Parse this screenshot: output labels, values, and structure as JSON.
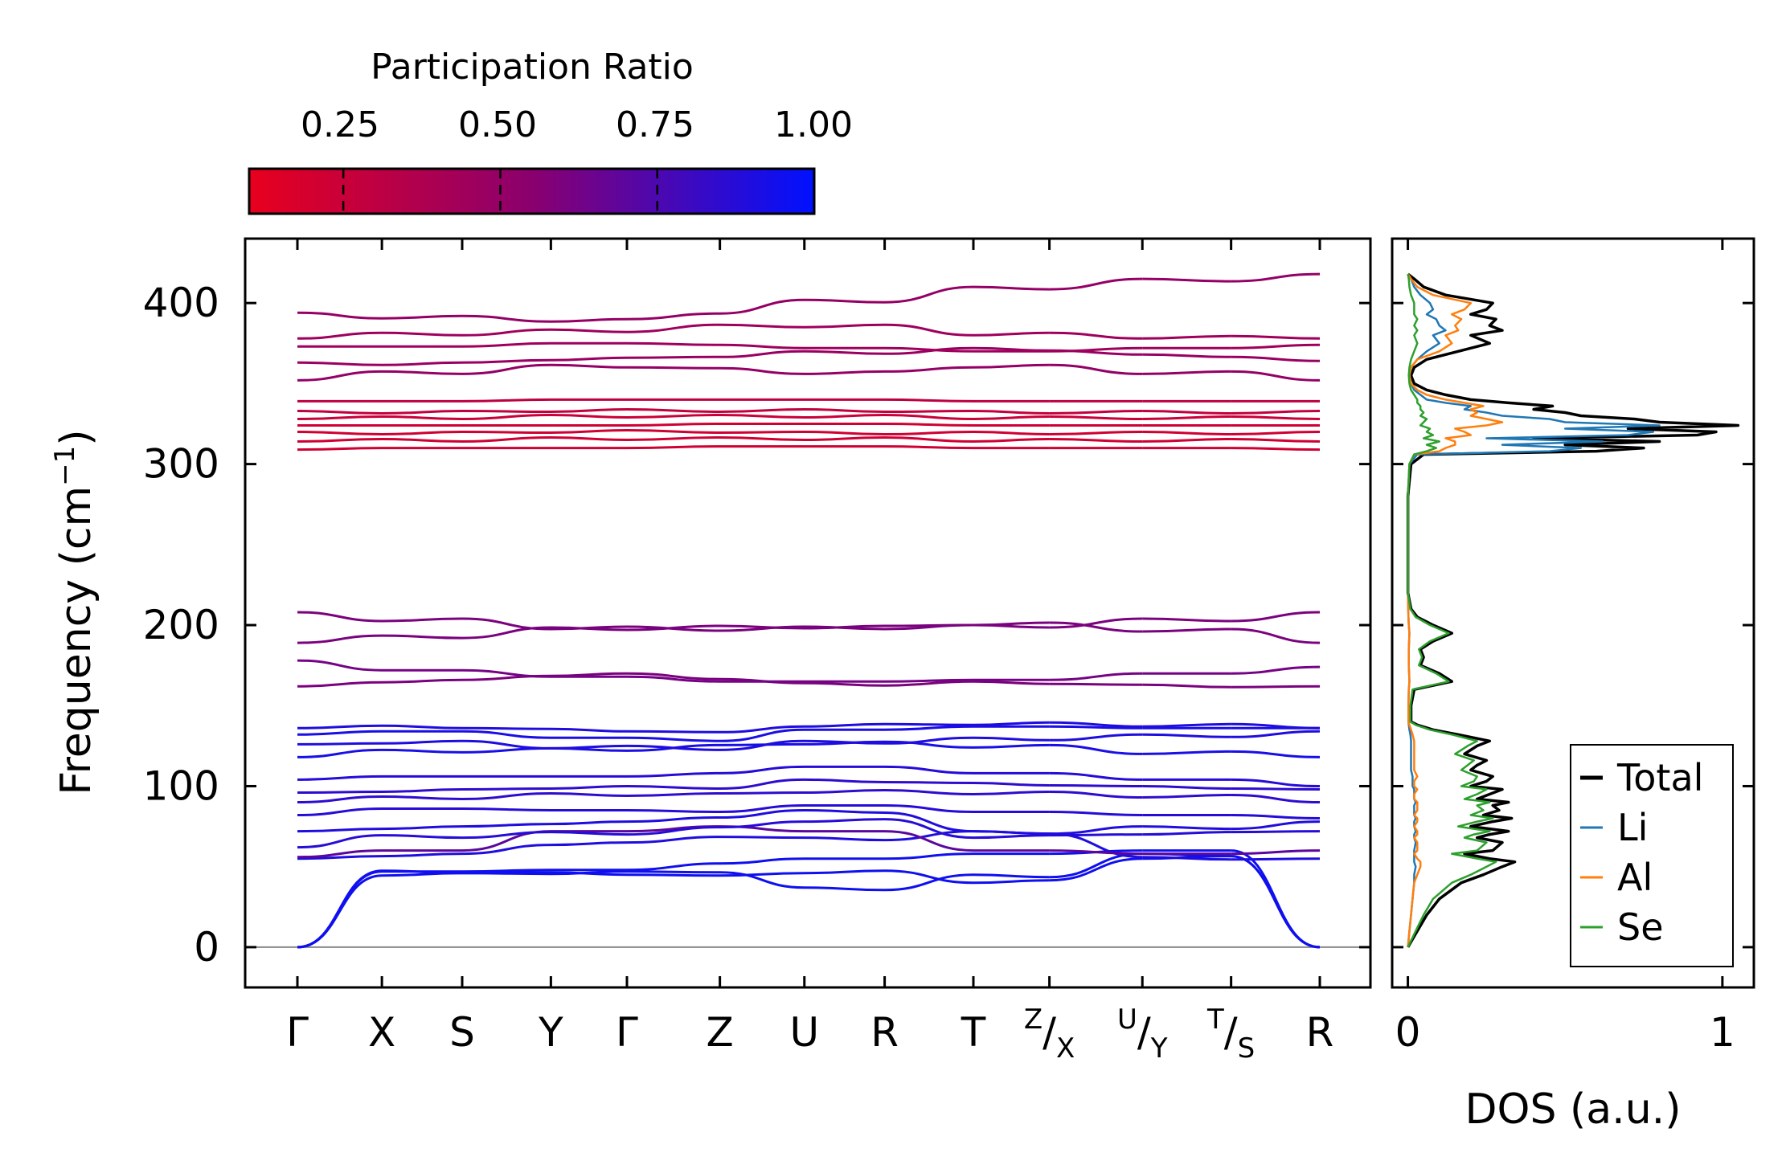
{
  "chart_data": [
    {
      "type": "line",
      "title": "",
      "xlabel": "",
      "ylabel": "Frequency (cm⁻¹)",
      "ylabel_main": "Frequency (cm",
      "ylabel_exp": "−1",
      "ylabel_close": ")",
      "ylim": [
        -25,
        440
      ],
      "yticks": [
        0,
        100,
        200,
        300,
        400
      ],
      "ytick_labels": [
        "0",
        "100",
        "200",
        "300",
        "400"
      ],
      "kpoints": [
        {
          "label": "Γ",
          "main": "Γ",
          "sup": "",
          "sub": ""
        },
        {
          "label": "X",
          "main": "X",
          "sup": "",
          "sub": ""
        },
        {
          "label": "S",
          "main": "S",
          "sup": "",
          "sub": ""
        },
        {
          "label": "Y",
          "main": "Y",
          "sup": "",
          "sub": ""
        },
        {
          "label": "Γ",
          "main": "Γ",
          "sup": "",
          "sub": ""
        },
        {
          "label": "Z",
          "main": "Z",
          "sup": "",
          "sub": ""
        },
        {
          "label": "U",
          "main": "U",
          "sup": "",
          "sub": ""
        },
        {
          "label": "R",
          "main": "R",
          "sup": "",
          "sub": ""
        },
        {
          "label": "T",
          "main": "T",
          "sup": "",
          "sub": ""
        },
        {
          "label": "Z/X",
          "main": "/",
          "sup": "Z",
          "sub": "X"
        },
        {
          "label": "U/Y",
          "main": "/",
          "sup": "U",
          "sub": "Y"
        },
        {
          "label": "T/S",
          "main": "/",
          "sup": "T",
          "sub": "S"
        },
        {
          "label": "R",
          "main": "R",
          "sup": "",
          "sub": ""
        }
      ],
      "kpos": [
        0,
        1.0,
        1.95,
        3.0,
        3.9,
        5.0,
        6.0,
        6.95,
        8.0,
        8.9,
        10.0,
        11.05,
        12.1
      ],
      "segments": [
        [
          0,
          4
        ],
        [
          4,
          9
        ],
        [
          9,
          10
        ],
        [
          10,
          11
        ],
        [
          11,
          12
        ]
      ],
      "series_description": "Phonon band structure colored by participation ratio",
      "bands": [
        {
          "f": [
            0,
            46,
            47,
            48,
            37,
            45,
            58,
            0
          ],
          "pr": 0.95
        },
        {
          "f": [
            0,
            47,
            48,
            52,
            55,
            58,
            60,
            0
          ],
          "pr": 0.95
        },
        {
          "f": [
            0,
            46,
            45,
            43,
            46,
            40,
            55,
            0
          ],
          "pr": 0.95
        },
        {
          "f": [
            55,
            58,
            65,
            70,
            68,
            72,
            56,
            55
          ],
          "pr": 0.9
        },
        {
          "f": [
            56,
            60,
            72,
            75,
            72,
            60,
            58,
            60
          ],
          "pr": 0.7
        },
        {
          "f": [
            62,
            68,
            70,
            73,
            78,
            68,
            70,
            72
          ],
          "pr": 0.88
        },
        {
          "f": [
            72,
            75,
            78,
            82,
            85,
            72,
            75,
            78
          ],
          "pr": 0.9
        },
        {
          "f": [
            82,
            86,
            85,
            84,
            88,
            84,
            82,
            80
          ],
          "pr": 0.88
        },
        {
          "f": [
            90,
            92,
            94,
            94,
            96,
            95,
            93,
            90
          ],
          "pr": 0.85
        },
        {
          "f": [
            96,
            98,
            100,
            100,
            104,
            102,
            100,
            98
          ],
          "pr": 0.85
        },
        {
          "f": [
            104,
            106,
            106,
            108,
            112,
            108,
            104,
            100
          ],
          "pr": 0.88
        },
        {
          "f": [
            118,
            121,
            122,
            124,
            126,
            124,
            120,
            118
          ],
          "pr": 0.92
        },
        {
          "f": [
            126,
            128,
            125,
            124,
            128,
            130,
            132,
            134
          ],
          "pr": 0.9
        },
        {
          "f": [
            132,
            134,
            130,
            128,
            135,
            137,
            136,
            136
          ],
          "pr": 0.92
        },
        {
          "f": [
            136,
            136,
            134,
            132,
            137,
            138,
            137,
            136
          ],
          "pr": 0.9
        },
        {
          "f": [
            162,
            166,
            170,
            168,
            164,
            165,
            163,
            162
          ],
          "pr": 0.6
        },
        {
          "f": [
            178,
            172,
            168,
            165,
            165,
            166,
            170,
            174
          ],
          "pr": 0.62
        },
        {
          "f": [
            189,
            192,
            197,
            198,
            198,
            200,
            196,
            189
          ],
          "pr": 0.6
        },
        {
          "f": [
            208,
            204,
            199,
            198,
            199,
            200,
            204,
            208
          ],
          "pr": 0.6
        },
        {
          "f": [
            309,
            310,
            310,
            311,
            311,
            310,
            310,
            309
          ],
          "pr": 0.22
        },
        {
          "f": [
            314,
            314,
            315,
            315,
            315,
            314,
            314,
            314
          ],
          "pr": 0.22
        },
        {
          "f": [
            320,
            320,
            321,
            321,
            320,
            320,
            320,
            320
          ],
          "pr": 0.22
        },
        {
          "f": [
            324,
            324,
            324,
            325,
            325,
            324,
            324,
            324
          ],
          "pr": 0.22
        },
        {
          "f": [
            328,
            328,
            329,
            329,
            329,
            328,
            328,
            328
          ],
          "pr": 0.25
        },
        {
          "f": [
            333,
            333,
            334,
            334,
            334,
            333,
            333,
            333
          ],
          "pr": 0.28
        },
        {
          "f": [
            339,
            339,
            340,
            340,
            340,
            339,
            339,
            339
          ],
          "pr": 0.3
        },
        {
          "f": [
            352,
            356,
            360,
            358,
            356,
            360,
            356,
            352
          ],
          "pr": 0.5
        },
        {
          "f": [
            363,
            363,
            366,
            368,
            370,
            372,
            368,
            364
          ],
          "pr": 0.48
        },
        {
          "f": [
            373,
            373,
            375,
            374,
            372,
            370,
            372,
            374
          ],
          "pr": 0.45
        },
        {
          "f": [
            378,
            380,
            382,
            385,
            385,
            380,
            378,
            378
          ],
          "pr": 0.45
        },
        {
          "f": [
            394,
            392,
            390,
            395,
            402,
            410,
            415,
            418
          ],
          "pr": 0.5
        }
      ]
    },
    {
      "type": "line",
      "title": "",
      "xlabel": "DOS (a.u.)",
      "ylabel": "",
      "xlim": [
        -0.05,
        1.1
      ],
      "ylim": [
        -25,
        440
      ],
      "xticks": [
        0,
        1
      ],
      "xtick_labels": [
        "0",
        "1"
      ],
      "legend_position": "lower-right",
      "freq": [
        0,
        10,
        20,
        30,
        40,
        45,
        50,
        53,
        55,
        58,
        60,
        65,
        68,
        70,
        72,
        75,
        78,
        80,
        82,
        85,
        88,
        90,
        92,
        95,
        98,
        100,
        103,
        106,
        110,
        113,
        116,
        120,
        125,
        128,
        132,
        135,
        138,
        140,
        150,
        160,
        165,
        170,
        175,
        180,
        185,
        190,
        195,
        200,
        205,
        210,
        220,
        250,
        280,
        300,
        306,
        308,
        310,
        312,
        314,
        316,
        318,
        320,
        322,
        324,
        326,
        328,
        330,
        332,
        334,
        336,
        338,
        340,
        343,
        346,
        350,
        355,
        360,
        365,
        370,
        375,
        380,
        383,
        386,
        390,
        393,
        396,
        400,
        405,
        410,
        415,
        418
      ],
      "series": [
        {
          "name": "Total",
          "color": "#000000",
          "values": [
            0,
            0.03,
            0.06,
            0.1,
            0.17,
            0.24,
            0.3,
            0.34,
            0.26,
            0.18,
            0.27,
            0.3,
            0.22,
            0.26,
            0.32,
            0.2,
            0.27,
            0.33,
            0.24,
            0.29,
            0.27,
            0.32,
            0.22,
            0.26,
            0.3,
            0.2,
            0.25,
            0.27,
            0.2,
            0.22,
            0.25,
            0.18,
            0.22,
            0.26,
            0.16,
            0.08,
            0.03,
            0.01,
            0.01,
            0.02,
            0.14,
            0.1,
            0.04,
            0.05,
            0.04,
            0.08,
            0.14,
            0.08,
            0.03,
            0.01,
            0,
            0,
            0,
            0.01,
            0.05,
            0.6,
            0.75,
            0.5,
            0.8,
            0.4,
            0.92,
            0.98,
            0.7,
            1.05,
            0.8,
            0.72,
            0.55,
            0.5,
            0.4,
            0.46,
            0.32,
            0.2,
            0.12,
            0.06,
            0.02,
            0.01,
            0.02,
            0.06,
            0.16,
            0.26,
            0.2,
            0.3,
            0.26,
            0.28,
            0.2,
            0.25,
            0.27,
            0.12,
            0.05,
            0.02,
            0
          ]
        },
        {
          "name": "Li",
          "color": "#1f77b4",
          "values": [
            0,
            0.005,
            0.01,
            0.015,
            0.02,
            0.02,
            0.025,
            0.02,
            0.02,
            0.02,
            0.02,
            0.025,
            0.02,
            0.02,
            0.025,
            0.02,
            0.02,
            0.025,
            0.02,
            0.02,
            0.02,
            0.025,
            0.02,
            0.02,
            0.02,
            0.015,
            0.015,
            0.015,
            0.01,
            0.01,
            0.01,
            0.01,
            0.01,
            0.01,
            0.008,
            0.005,
            0.003,
            0.002,
            0.002,
            0.003,
            0.005,
            0.004,
            0.003,
            0.003,
            0.003,
            0.004,
            0.005,
            0.003,
            0.002,
            0.001,
            0,
            0,
            0,
            0.005,
            0.03,
            0.45,
            0.55,
            0.3,
            0.62,
            0.25,
            0.7,
            0.78,
            0.5,
            0.8,
            0.5,
            0.45,
            0.3,
            0.25,
            0.18,
            0.2,
            0.12,
            0.06,
            0.04,
            0.02,
            0.01,
            0.005,
            0.01,
            0.03,
            0.06,
            0.1,
            0.08,
            0.12,
            0.1,
            0.09,
            0.06,
            0.08,
            0.07,
            0.04,
            0.02,
            0.01,
            0
          ]
        },
        {
          "name": "Al",
          "color": "#ff7f0e",
          "values": [
            0,
            0.005,
            0.01,
            0.015,
            0.02,
            0.03,
            0.04,
            0.04,
            0.03,
            0.02,
            0.03,
            0.03,
            0.02,
            0.03,
            0.03,
            0.02,
            0.03,
            0.03,
            0.02,
            0.03,
            0.03,
            0.03,
            0.02,
            0.02,
            0.03,
            0.02,
            0.02,
            0.03,
            0.02,
            0.02,
            0.02,
            0.02,
            0.02,
            0.02,
            0.015,
            0.01,
            0.005,
            0.002,
            0.002,
            0.003,
            0.005,
            0.004,
            0.003,
            0.003,
            0.003,
            0.004,
            0.005,
            0.003,
            0.002,
            0.001,
            0,
            0,
            0,
            0.005,
            0.02,
            0.1,
            0.12,
            0.15,
            0.15,
            0.12,
            0.2,
            0.18,
            0.15,
            0.25,
            0.3,
            0.25,
            0.2,
            0.22,
            0.2,
            0.24,
            0.18,
            0.12,
            0.06,
            0.03,
            0.01,
            0.005,
            0.01,
            0.03,
            0.1,
            0.14,
            0.12,
            0.16,
            0.15,
            0.17,
            0.14,
            0.18,
            0.2,
            0.08,
            0.03,
            0.01,
            0
          ]
        },
        {
          "name": "Se",
          "color": "#2ca02c",
          "values": [
            0,
            0.025,
            0.05,
            0.08,
            0.14,
            0.2,
            0.25,
            0.28,
            0.22,
            0.14,
            0.22,
            0.25,
            0.18,
            0.21,
            0.26,
            0.16,
            0.22,
            0.27,
            0.2,
            0.24,
            0.22,
            0.26,
            0.18,
            0.22,
            0.25,
            0.17,
            0.21,
            0.22,
            0.17,
            0.19,
            0.21,
            0.15,
            0.19,
            0.22,
            0.14,
            0.07,
            0.025,
            0.008,
            0.008,
            0.015,
            0.13,
            0.09,
            0.035,
            0.045,
            0.035,
            0.07,
            0.13,
            0.07,
            0.025,
            0.008,
            0,
            0,
            0,
            0.005,
            0.02,
            0.06,
            0.09,
            0.06,
            0.1,
            0.05,
            0.08,
            0.06,
            0.07,
            0.04,
            0.05,
            0.06,
            0.04,
            0.05,
            0.04,
            0.04,
            0.03,
            0.03,
            0.02,
            0.01,
            0.005,
            0.003,
            0.005,
            0.01,
            0.02,
            0.03,
            0.02,
            0.03,
            0.02,
            0.03,
            0.02,
            0.02,
            0.02,
            0.01,
            0.005,
            0.003,
            0
          ]
        }
      ]
    }
  ],
  "colorbar": {
    "title": "Participation Ratio",
    "tick_values": [
      0.25,
      0.5,
      0.75,
      1.0
    ],
    "tick_labels": [
      "0.25",
      "0.50",
      "0.75",
      "1.00"
    ],
    "range": [
      0.1,
      1.0
    ],
    "low_color": "#e8001e",
    "mid_color": "#8a006e",
    "high_color": "#0011ff"
  }
}
